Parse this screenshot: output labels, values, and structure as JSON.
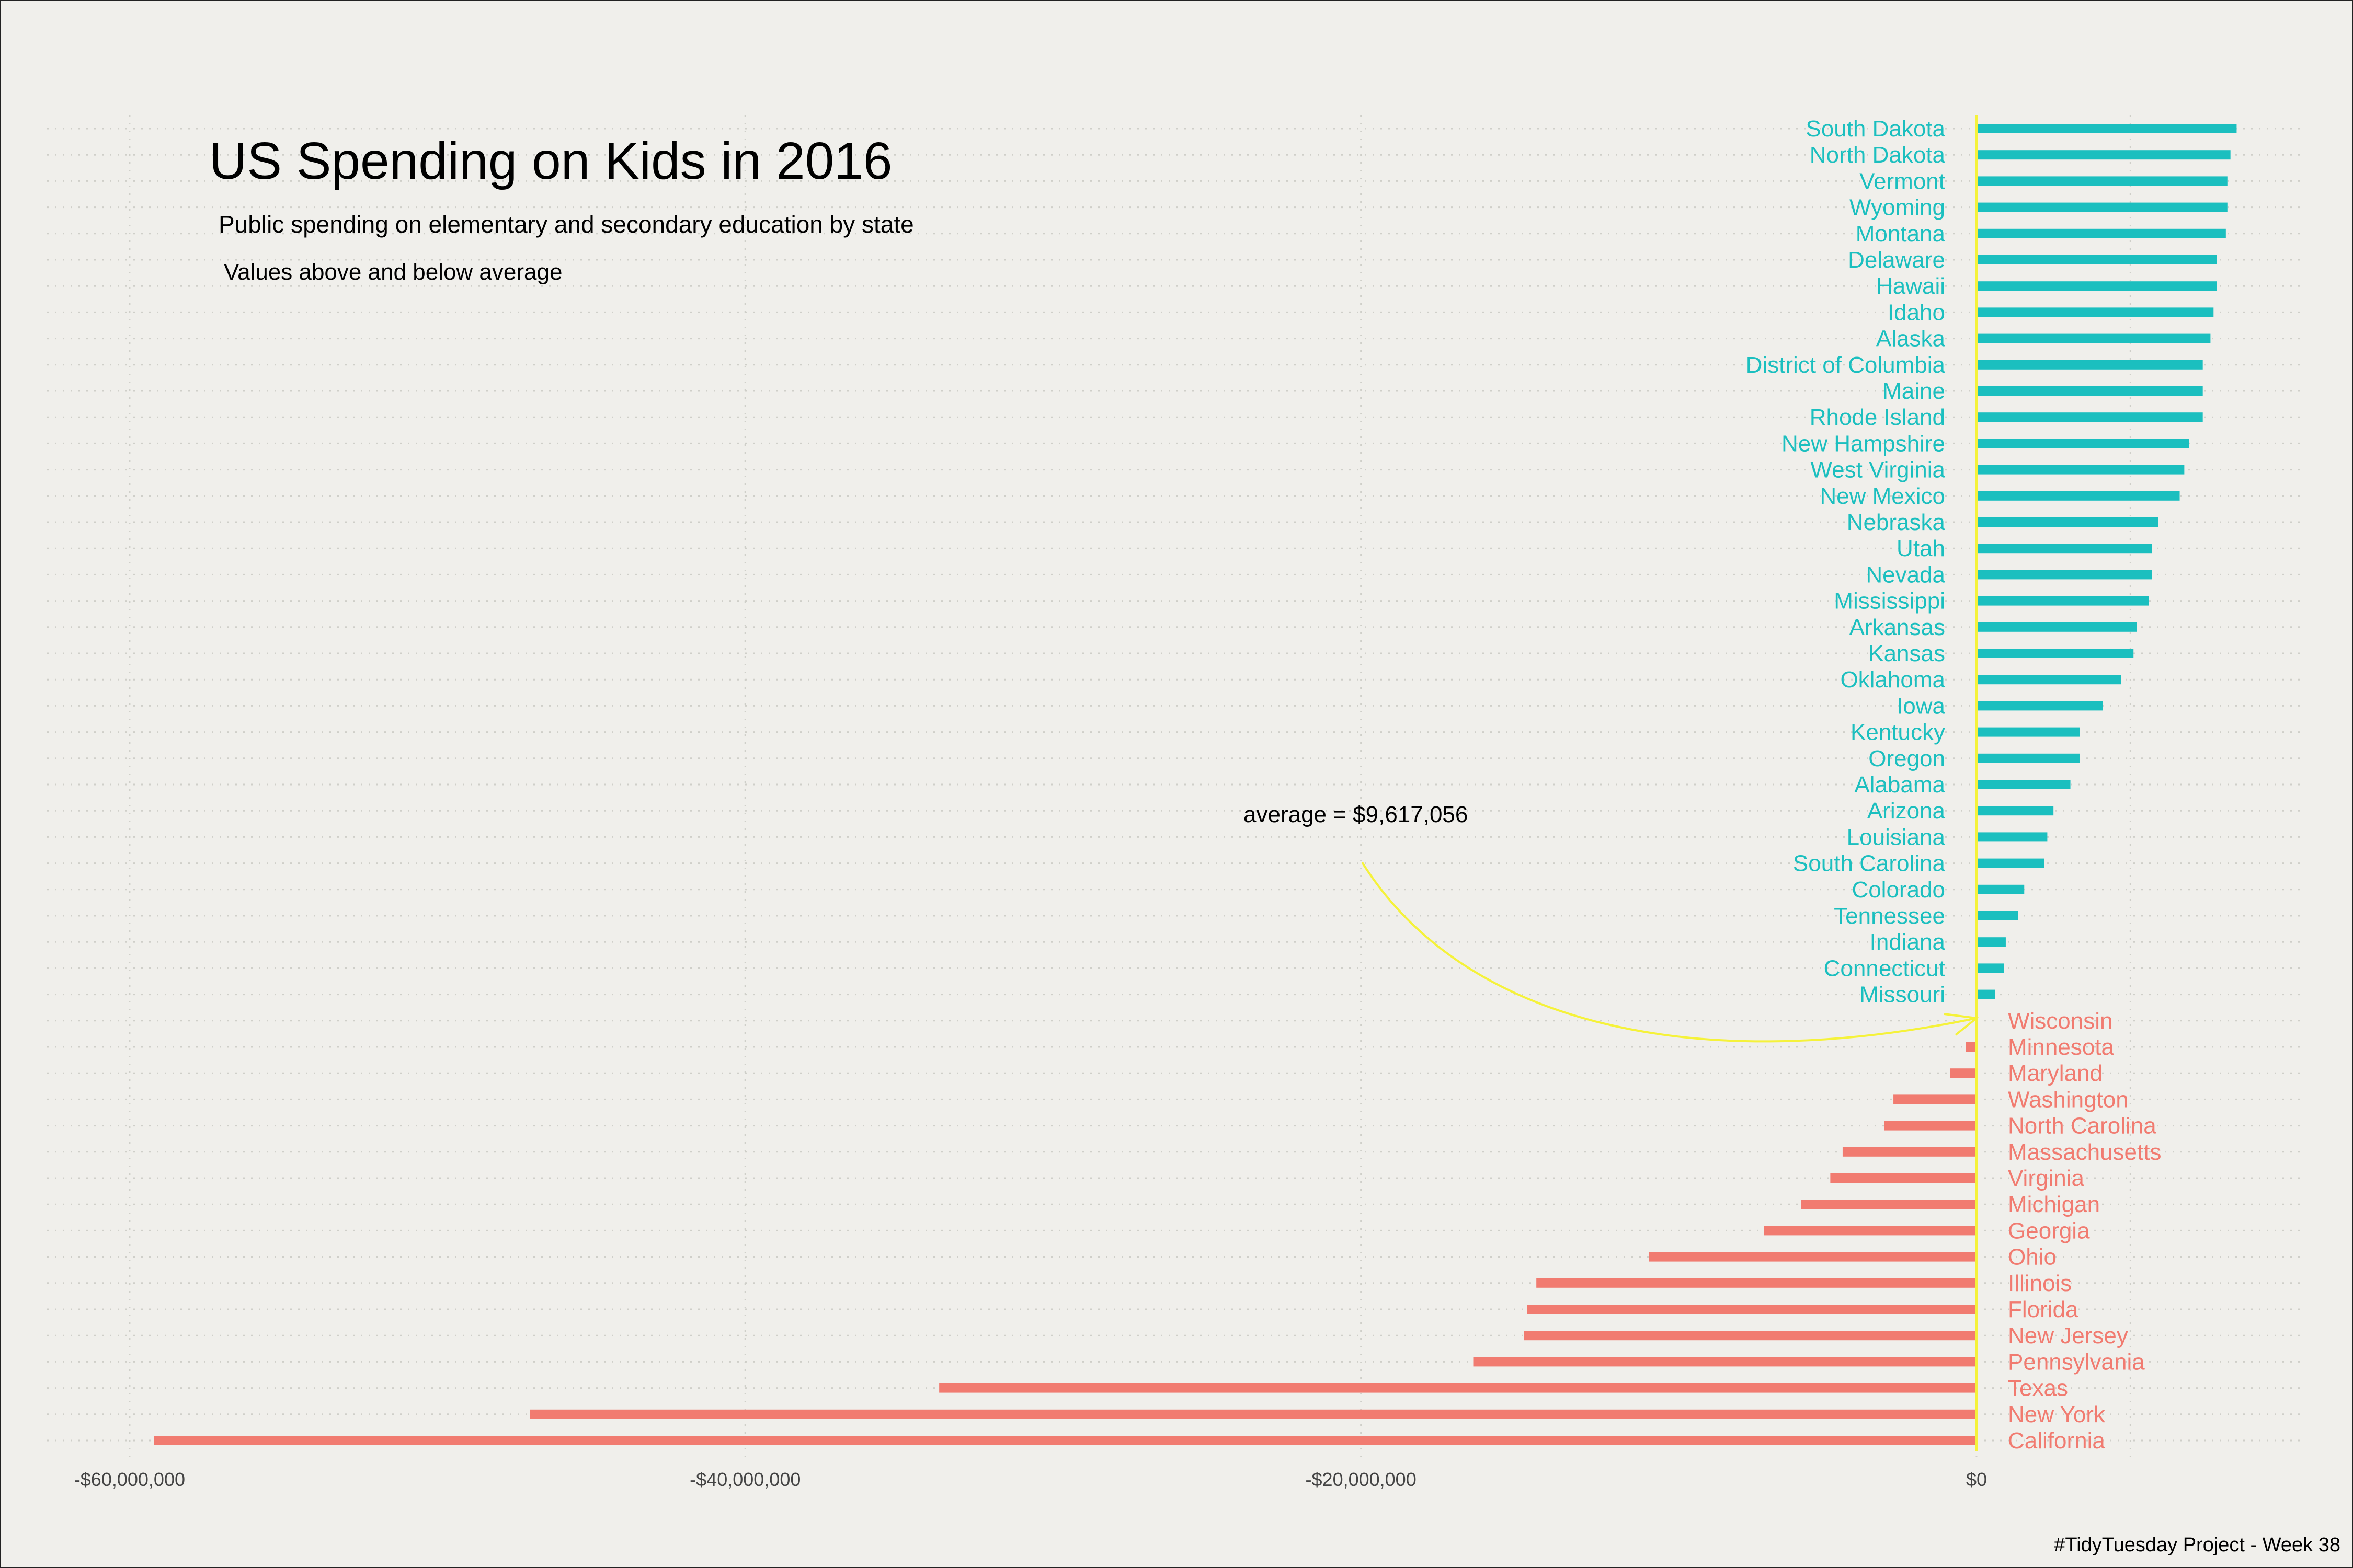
{
  "colors": {
    "above": "#1bbfbf",
    "below": "#f17b70",
    "average_line": "#f5f23a",
    "background": "#f0efeb",
    "grid": "#cfcfc9"
  },
  "chart_data": {
    "type": "bar",
    "orientation": "horizontal",
    "title": "US Spending on Kids in 2016",
    "subtitle": "Public spending on elementary and secondary education by state",
    "subsubtitle": "Values above and below average",
    "caption": "#TidyTuesday Project - Week 38",
    "annotation": "average = $9,617,056",
    "xlim": [
      -60000000,
      6000000
    ],
    "x_ticks": [
      {
        "value": -60000000,
        "label": "-$60,000,000"
      },
      {
        "value": -40000000,
        "label": "-$40,000,000"
      },
      {
        "value": -20000000,
        "label": "-$20,000,000"
      },
      {
        "value": 0,
        "label": "$0"
      }
    ],
    "grid": "dotted",
    "categories": [
      "South Dakota",
      "North Dakota",
      "Vermont",
      "Wyoming",
      "Montana",
      "Delaware",
      "Hawaii",
      "Idaho",
      "Alaska",
      "District of Columbia",
      "Maine",
      "Rhode Island",
      "New Hampshire",
      "West Virginia",
      "New Mexico",
      "Nebraska",
      "Utah",
      "Nevada",
      "Mississippi",
      "Arkansas",
      "Kansas",
      "Oklahoma",
      "Iowa",
      "Kentucky",
      "Oregon",
      "Alabama",
      "Arizona",
      "Louisiana",
      "South Carolina",
      "Colorado",
      "Tennessee",
      "Indiana",
      "Connecticut",
      "Missouri",
      "Wisconsin",
      "Minnesota",
      "Maryland",
      "Washington",
      "North Carolina",
      "Massachusetts",
      "Virginia",
      "Michigan",
      "Georgia",
      "Ohio",
      "Illinois",
      "Florida",
      "New Jersey",
      "Pennsylvania",
      "Texas",
      "New York",
      "California"
    ],
    "values": [
      8450000,
      8250000,
      8150000,
      8150000,
      8100000,
      7800000,
      7800000,
      7700000,
      7600000,
      7350000,
      7350000,
      7350000,
      6900000,
      6750000,
      6600000,
      5900000,
      5700000,
      5700000,
      5600000,
      5200000,
      5100000,
      4700000,
      4100000,
      3350000,
      3350000,
      3050000,
      2500000,
      2300000,
      2200000,
      1550000,
      1350000,
      950000,
      900000,
      600000,
      -50000,
      -350000,
      -850000,
      -2700000,
      -3000000,
      -4350000,
      -4750000,
      -5700000,
      -6900000,
      -10650000,
      -14300000,
      -14600000,
      -14700000,
      -16350000,
      -33700000,
      -47000000,
      -59200000
    ]
  }
}
